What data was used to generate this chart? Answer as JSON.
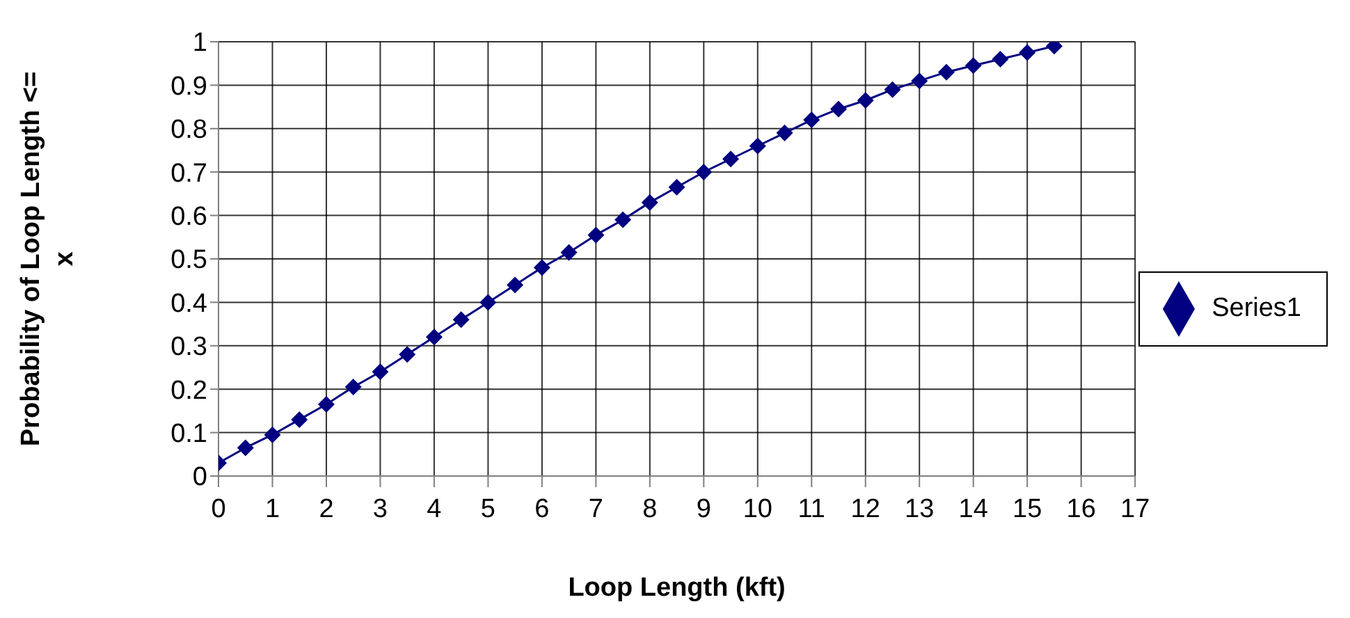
{
  "chart_data": {
    "type": "line",
    "xlabel": "Loop Length (kft)",
    "ylabel": "Probability of Loop Length <= x",
    "x": [
      0,
      0.5,
      1,
      1.5,
      2,
      2.5,
      3,
      3.5,
      4,
      4.5,
      5,
      5.5,
      6,
      6.5,
      7,
      7.5,
      8,
      8.5,
      9,
      9.5,
      10,
      10.5,
      11,
      11.5,
      12,
      12.5,
      13,
      13.5,
      14,
      14.5,
      15,
      15.5
    ],
    "series": [
      {
        "name": "Series1",
        "color": "#000080",
        "values": [
          0.03,
          0.065,
          0.095,
          0.13,
          0.165,
          0.205,
          0.24,
          0.28,
          0.32,
          0.36,
          0.4,
          0.44,
          0.48,
          0.515,
          0.555,
          0.59,
          0.63,
          0.665,
          0.7,
          0.73,
          0.76,
          0.79,
          0.82,
          0.845,
          0.865,
          0.89,
          0.91,
          0.93,
          0.945,
          0.96,
          0.975,
          0.99
        ]
      }
    ],
    "xlim": [
      0,
      17
    ],
    "xticks": [
      0,
      1,
      2,
      3,
      4,
      5,
      6,
      7,
      8,
      9,
      10,
      11,
      12,
      13,
      14,
      15,
      16,
      17
    ],
    "ylim": [
      0,
      1
    ],
    "yticks": [
      0,
      0.1,
      0.2,
      0.3,
      0.4,
      0.5,
      0.6,
      0.7,
      0.8,
      0.9,
      1
    ],
    "grid": true,
    "legend": "right",
    "marker": "diamond",
    "line_style": "solid"
  }
}
